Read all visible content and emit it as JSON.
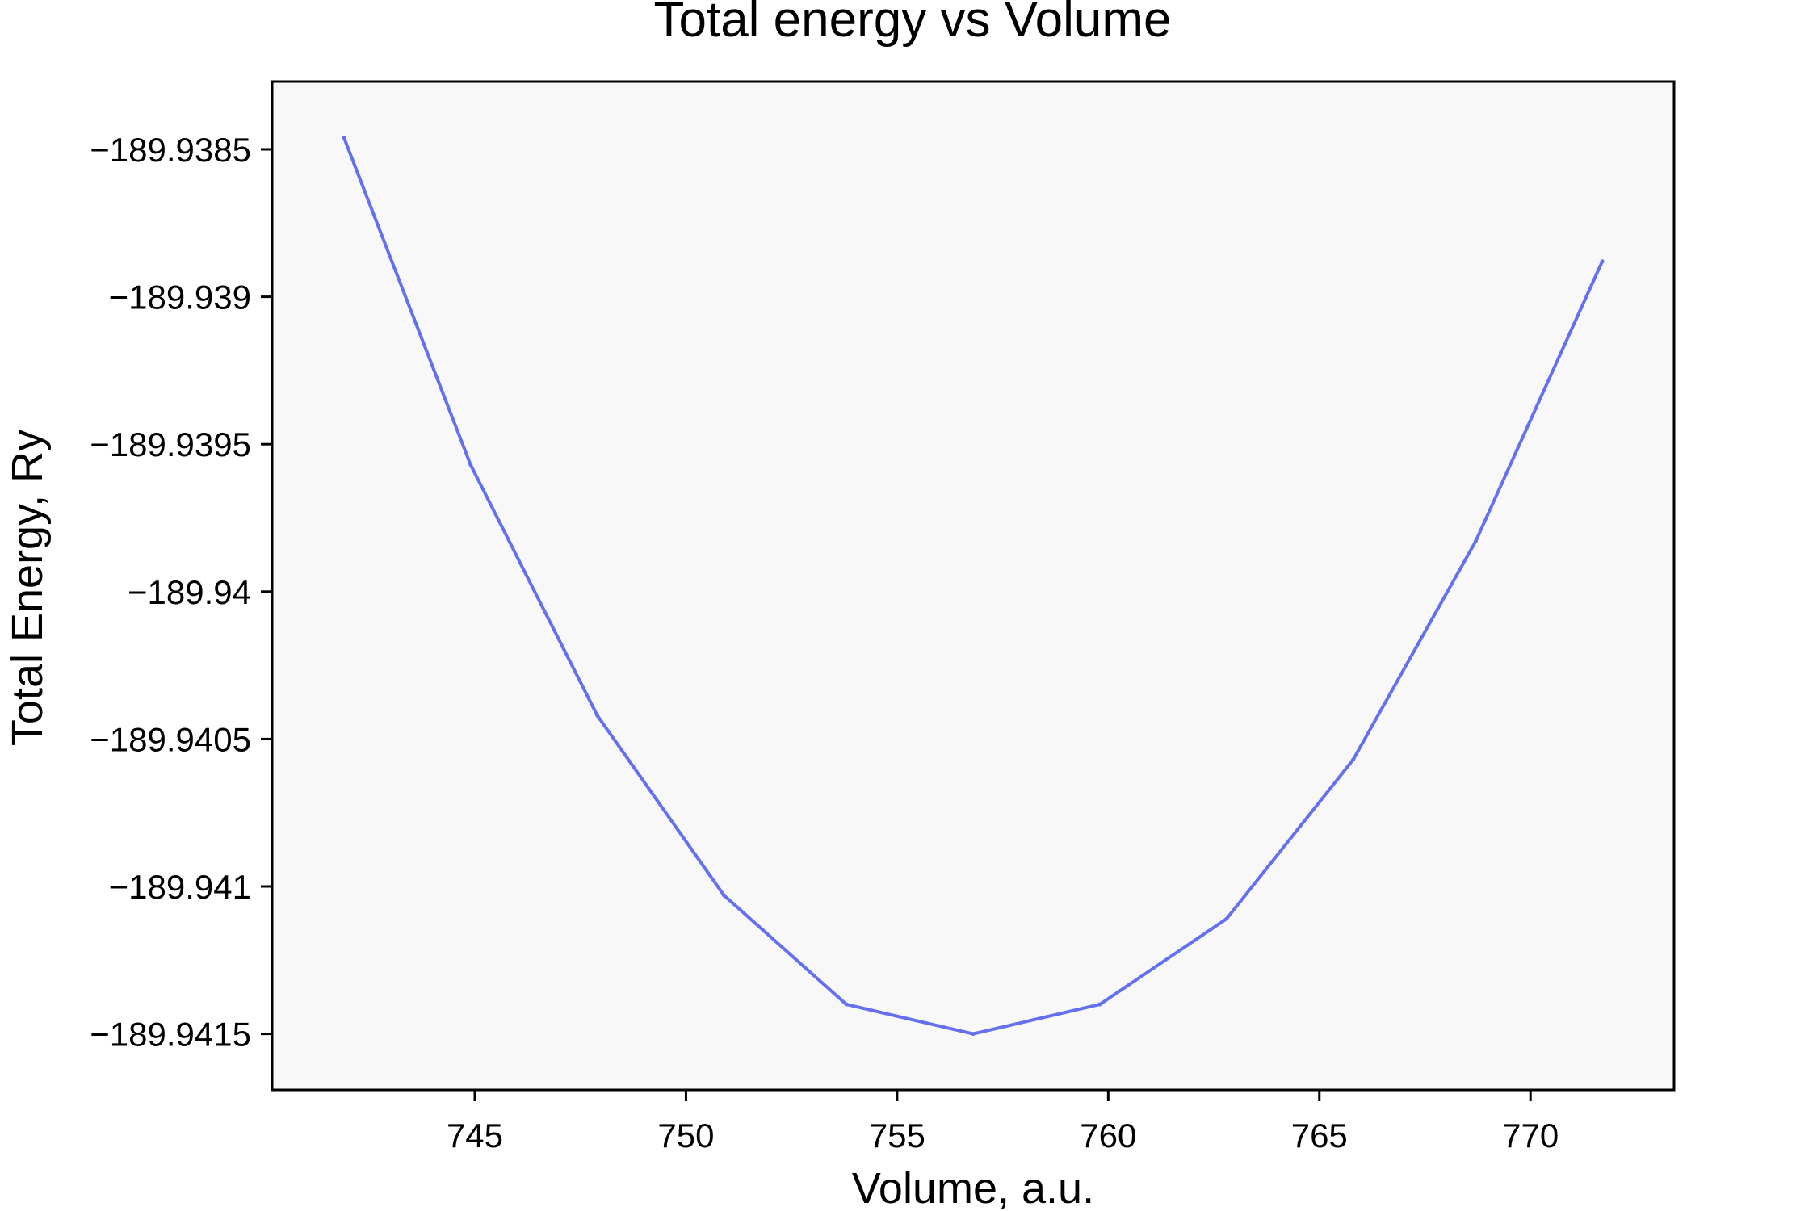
{
  "chart_data": {
    "type": "line",
    "title": "Total energy vs Volume",
    "xlabel": "Volume, a.u.",
    "ylabel": "Total Energy, Ry",
    "xlim": [
      740.2,
      773.4
    ],
    "ylim": [
      -189.94169,
      -189.93827
    ],
    "xticks": [
      745,
      750,
      755,
      760,
      765,
      770
    ],
    "xtick_labels": [
      "745",
      "750",
      "755",
      "760",
      "765",
      "770"
    ],
    "yticks": [
      -189.9385,
      -189.939,
      -189.9395,
      -189.94,
      -189.9405,
      -189.941,
      -189.9415
    ],
    "ytick_labels": [
      "−189.9385",
      "−189.939",
      "−189.9395",
      "−189.94",
      "−189.9405",
      "−189.941",
      "−189.9415"
    ],
    "grid": false,
    "series": [
      {
        "color": "#6470ee",
        "x": [
          741.9,
          744.9,
          747.9,
          750.9,
          753.8,
          756.8,
          759.8,
          762.8,
          765.8,
          768.7,
          771.7
        ],
        "y": [
          -189.93846,
          -189.93957,
          -189.94042,
          -189.94103,
          -189.9414,
          -189.9415,
          -189.9414,
          -189.94111,
          -189.94057,
          -189.93983,
          -189.93888
        ]
      }
    ],
    "colors": {
      "plot_background": "#f8f8f8",
      "frame": "#000000"
    }
  }
}
